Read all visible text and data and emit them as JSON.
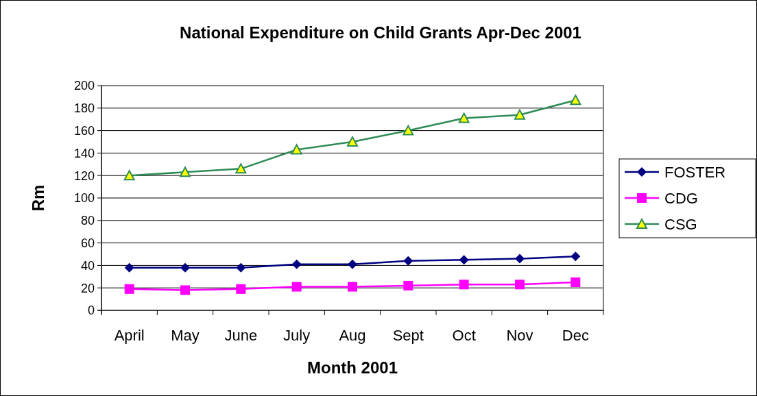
{
  "chart_data": {
    "type": "line",
    "title": "National Expenditure on Child Grants Apr-Dec 2001",
    "xlabel": "Month 2001",
    "ylabel": "Rm",
    "categories": [
      "April",
      "May",
      "June",
      "July",
      "Aug",
      "Sept",
      "Oct",
      "Nov",
      "Dec"
    ],
    "series": [
      {
        "name": "FOSTER",
        "color": "#000080",
        "marker": "diamond",
        "values": [
          38,
          38,
          38,
          41,
          41,
          44,
          45,
          46,
          48
        ]
      },
      {
        "name": "CDG",
        "color": "#ff00ff",
        "marker": "square",
        "values": [
          19,
          18,
          19,
          21,
          21,
          22,
          23,
          23,
          25
        ]
      },
      {
        "name": "CSG",
        "color": "#2e8b57",
        "marker": "triangle",
        "values": [
          120,
          123,
          126,
          143,
          150,
          160,
          171,
          174,
          187
        ]
      }
    ],
    "ylim": [
      0,
      200
    ],
    "yticks": [
      0,
      20,
      40,
      60,
      80,
      100,
      120,
      140,
      160,
      180,
      200
    ],
    "grid": "y",
    "legend": "right",
    "line_style": "solid"
  }
}
